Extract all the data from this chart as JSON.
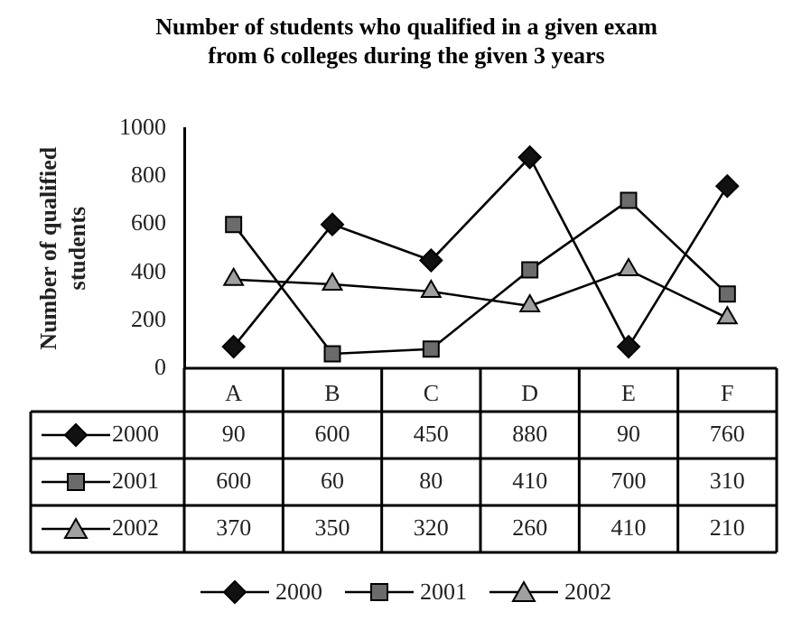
{
  "chart_data": {
    "type": "line",
    "title": "Number of students who qualified in a given exam from 6 colleges during the given 3 years",
    "ylabel": "Number of qualified students",
    "categories": [
      "A",
      "B",
      "C",
      "D",
      "E",
      "F"
    ],
    "series": [
      {
        "name": "2000",
        "color": "#111111",
        "marker": "diamond",
        "values": [
          90,
          600,
          450,
          880,
          90,
          760
        ]
      },
      {
        "name": "2001",
        "color": "#6b6b6b",
        "marker": "square",
        "values": [
          600,
          60,
          80,
          410,
          700,
          310
        ]
      },
      {
        "name": "2002",
        "color": "#a0a0a0",
        "marker": "triangle",
        "values": [
          370,
          350,
          320,
          260,
          410,
          210
        ]
      }
    ],
    "ylim": [
      0,
      1000
    ],
    "yticks": [
      0,
      200,
      400,
      600,
      800,
      1000
    ],
    "grid": false,
    "legend": "bottom",
    "data_labels": true
  }
}
